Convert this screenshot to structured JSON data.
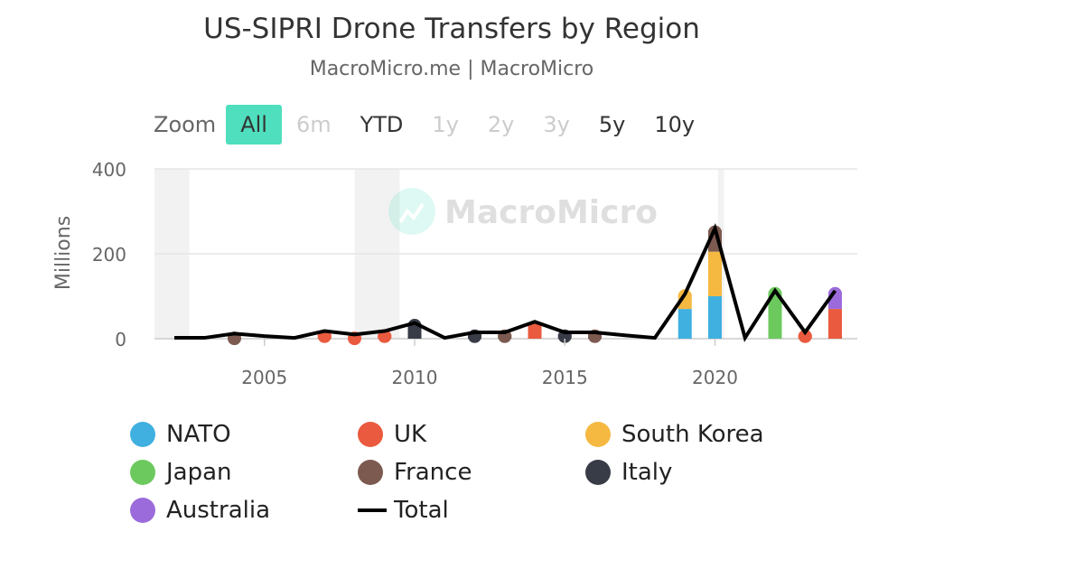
{
  "header": {
    "title": "US-SIPRI Drone Transfers by Region",
    "subtitle": "MacroMicro.me | MacroMicro"
  },
  "watermark": {
    "text": "MacroMicro"
  },
  "zoom": {
    "label": "Zoom",
    "buttons": [
      {
        "label": "All",
        "state": "active"
      },
      {
        "label": "6m",
        "state": "disabled"
      },
      {
        "label": "YTD",
        "state": "normal"
      },
      {
        "label": "1y",
        "state": "disabled"
      },
      {
        "label": "2y",
        "state": "disabled"
      },
      {
        "label": "3y",
        "state": "disabled"
      },
      {
        "label": "5y",
        "state": "normal"
      },
      {
        "label": "10y",
        "state": "normal"
      }
    ]
  },
  "chart_data": {
    "type": "bar",
    "stacked": true,
    "title": "US-SIPRI Drone Transfers by Region",
    "subtitle": "MacroMicro.me | MacroMicro",
    "xlabel": "",
    "ylabel": "Millions",
    "xlim": [
      2002,
      2024
    ],
    "ylim": [
      0,
      400
    ],
    "yticks": [
      0,
      200,
      400
    ],
    "xticks": [
      2005,
      2010,
      2015,
      2020
    ],
    "grid": true,
    "legend_position": "bottom",
    "shaded_ranges": [
      [
        2002,
        2002.5
      ],
      [
        2008,
        2009.5
      ],
      [
        2020.1,
        2020.3
      ]
    ],
    "x": [
      2002,
      2003,
      2004,
      2005,
      2006,
      2007,
      2008,
      2009,
      2010,
      2011,
      2012,
      2013,
      2014,
      2015,
      2016,
      2017,
      2018,
      2019,
      2020,
      2021,
      2022,
      2023,
      2024
    ],
    "series": [
      {
        "name": "NATO",
        "color": "#3fb0e0",
        "values": [
          0,
          0,
          0,
          0,
          0,
          0,
          0,
          0,
          0,
          0,
          0,
          0,
          0,
          0,
          0,
          0,
          0,
          70,
          100,
          0,
          0,
          0,
          0
        ]
      },
      {
        "name": "UK",
        "color": "#ea5a3e",
        "values": [
          0,
          0,
          0,
          0,
          0,
          10,
          5,
          10,
          0,
          0,
          0,
          0,
          30,
          0,
          0,
          0,
          0,
          0,
          0,
          0,
          0,
          10,
          70
        ]
      },
      {
        "name": "South Korea",
        "color": "#f5b942",
        "values": [
          0,
          0,
          0,
          0,
          0,
          0,
          0,
          0,
          0,
          0,
          0,
          0,
          0,
          0,
          0,
          0,
          0,
          35,
          105,
          0,
          0,
          0,
          0
        ]
      },
      {
        "name": "Japan",
        "color": "#6cc95e",
        "values": [
          0,
          0,
          0,
          0,
          0,
          0,
          0,
          0,
          0,
          0,
          0,
          0,
          0,
          0,
          0,
          0,
          0,
          0,
          0,
          0,
          110,
          0,
          0
        ]
      },
      {
        "name": "France",
        "color": "#7d5a50",
        "values": [
          0,
          0,
          5,
          0,
          0,
          0,
          0,
          0,
          0,
          0,
          5,
          10,
          0,
          5,
          10,
          0,
          0,
          0,
          50,
          0,
          0,
          0,
          0
        ]
      },
      {
        "name": "Italy",
        "color": "#383c47",
        "values": [
          0,
          0,
          0,
          0,
          0,
          0,
          0,
          0,
          35,
          0,
          5,
          0,
          0,
          5,
          0,
          0,
          0,
          0,
          0,
          0,
          0,
          0,
          0
        ]
      },
      {
        "name": "Australia",
        "color": "#9c6bdb",
        "values": [
          0,
          0,
          0,
          0,
          0,
          0,
          0,
          0,
          0,
          0,
          0,
          0,
          0,
          0,
          0,
          0,
          0,
          0,
          0,
          0,
          0,
          0,
          40
        ]
      }
    ],
    "line": {
      "name": "Total",
      "color": "#000000",
      "values": [
        2,
        2,
        12,
        6,
        2,
        18,
        10,
        18,
        37,
        2,
        15,
        15,
        40,
        15,
        15,
        8,
        2,
        105,
        260,
        2,
        113,
        15,
        113
      ]
    }
  },
  "legend": {
    "items": [
      {
        "name": "NATO",
        "color": "#3fb0e0",
        "kind": "dot"
      },
      {
        "name": "UK",
        "color": "#ea5a3e",
        "kind": "dot"
      },
      {
        "name": "South Korea",
        "color": "#f5b942",
        "kind": "dot"
      },
      {
        "name": "Japan",
        "color": "#6cc95e",
        "kind": "dot"
      },
      {
        "name": "France",
        "color": "#7d5a50",
        "kind": "dot"
      },
      {
        "name": "Italy",
        "color": "#383c47",
        "kind": "dot"
      },
      {
        "name": "Australia",
        "color": "#9c6bdb",
        "kind": "dot"
      },
      {
        "name": "Total",
        "color": "#000000",
        "kind": "line"
      }
    ]
  }
}
